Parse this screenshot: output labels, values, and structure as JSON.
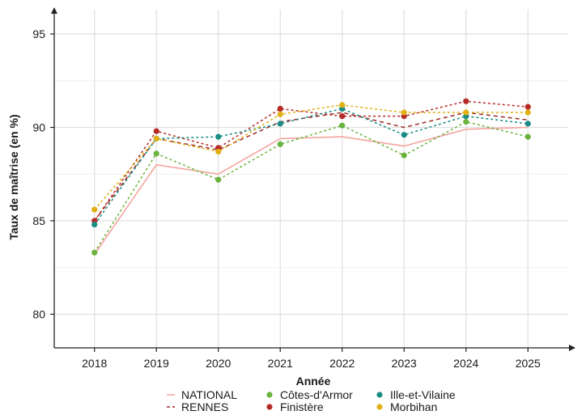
{
  "chart_data": {
    "type": "line",
    "title": "",
    "xlabel": "Année",
    "ylabel": "Taux de maîtrise (en %)",
    "x": [
      2018,
      2019,
      2020,
      2021,
      2022,
      2023,
      2024,
      2025
    ],
    "x_tick_labels": [
      "2018",
      "2019",
      "2020",
      "2021",
      "2022",
      "2023",
      "2024",
      "2025"
    ],
    "y_ticks": [
      80,
      85,
      90,
      95
    ],
    "y_tick_labels": [
      "80",
      "85",
      "90",
      "95"
    ],
    "ylim": [
      78.2,
      96.3
    ],
    "grid": true,
    "legend_position": "bottom",
    "series": [
      {
        "name": "NATIONAL",
        "color": "#f4a5a0",
        "style": "solid",
        "markers": false,
        "values": [
          83.2,
          88.0,
          87.5,
          89.4,
          89.5,
          89.0,
          89.9,
          90.0
        ]
      },
      {
        "name": "RENNES",
        "color": "#9b2a25",
        "style": "dashed",
        "markers": false,
        "values": [
          85.0,
          89.4,
          88.8,
          90.3,
          90.8,
          90.0,
          90.8,
          90.4
        ]
      },
      {
        "name": "Côtes-d'Armor",
        "color": "#6ab33e",
        "style": "dotted",
        "markers": true,
        "values": [
          83.3,
          88.6,
          87.2,
          89.1,
          90.1,
          88.5,
          90.3,
          89.5
        ]
      },
      {
        "name": "Finistère",
        "color": "#b52a26",
        "style": "dotted",
        "markers": true,
        "values": [
          85.0,
          89.8,
          88.9,
          91.0,
          90.6,
          90.6,
          91.4,
          91.1
        ]
      },
      {
        "name": "Ille-et-Vilaine",
        "color": "#1a8c84",
        "style": "dotted",
        "markers": true,
        "values": [
          84.8,
          89.4,
          89.5,
          90.2,
          91.0,
          89.6,
          90.6,
          90.2
        ]
      },
      {
        "name": "Morbihan",
        "color": "#e0b014",
        "style": "dotted",
        "markers": true,
        "values": [
          85.6,
          89.4,
          88.7,
          90.7,
          91.2,
          90.8,
          90.8,
          90.8
        ]
      }
    ]
  }
}
